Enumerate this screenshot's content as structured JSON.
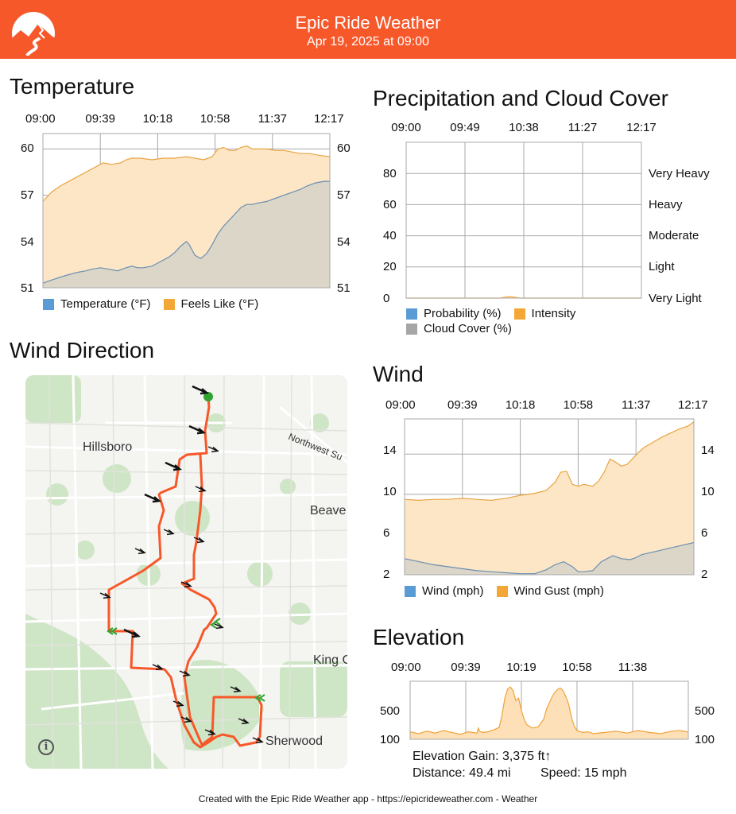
{
  "header": {
    "title": "Epic Ride Weather",
    "subtitle": "Apr 19, 2025 at 09:00",
    "brand_color": "#f7582a"
  },
  "temperature": {
    "title": "Temperature",
    "chart_data": {
      "type": "area",
      "x_ticks": [
        "09:00",
        "09:39",
        "10:18",
        "10:58",
        "11:37",
        "12:17"
      ],
      "y_ticks": [
        "60",
        "57",
        "54",
        "51"
      ],
      "ylim": [
        51,
        61
      ],
      "series": [
        {
          "name": "Temperature (°F)",
          "color": "#5a9bd5",
          "x": [
            0,
            3,
            8,
            12,
            15,
            17,
            20,
            23,
            26,
            29,
            31,
            33,
            35,
            38,
            40,
            42,
            44,
            46,
            48,
            50,
            51,
            53,
            55,
            57,
            59,
            61,
            63,
            65,
            67,
            69,
            71,
            73,
            75,
            78,
            81,
            84,
            87,
            90,
            92,
            95,
            98,
            100
          ],
          "values": [
            51.3,
            51.5,
            51.8,
            52.0,
            52.1,
            52.2,
            52.3,
            52.2,
            52.1,
            52.3,
            52.4,
            52.3,
            52.3,
            52.4,
            52.6,
            52.8,
            53.0,
            53.3,
            53.7,
            54.0,
            53.8,
            53.1,
            52.9,
            53.2,
            53.8,
            54.5,
            55.0,
            55.4,
            55.8,
            56.2,
            56.4,
            56.4,
            56.5,
            56.6,
            56.8,
            57.0,
            57.2,
            57.4,
            57.6,
            57.8,
            57.9,
            57.9
          ]
        },
        {
          "name": "Feels Like (°F)",
          "color": "#f4a636",
          "x": [
            0,
            3,
            6,
            10,
            14,
            18,
            21,
            24,
            27,
            29,
            31,
            34,
            38,
            42,
            46,
            50,
            53,
            56,
            59,
            61,
            63,
            65,
            67,
            69,
            71,
            73,
            75,
            78,
            81,
            84,
            87,
            90,
            93,
            96,
            100
          ],
          "values": [
            56.6,
            57.2,
            57.6,
            58.0,
            58.4,
            58.8,
            59.1,
            59.0,
            59.1,
            59.3,
            59.4,
            59.4,
            59.3,
            59.4,
            59.4,
            59.5,
            59.4,
            59.3,
            59.5,
            60.0,
            60.1,
            59.9,
            59.9,
            60.1,
            60.2,
            60.0,
            60.0,
            60.0,
            59.9,
            59.9,
            59.8,
            59.7,
            59.7,
            59.6,
            59.5
          ]
        }
      ]
    }
  },
  "precipitation": {
    "title": "Precipitation and Cloud Cover",
    "chart_data": {
      "type": "area",
      "x_ticks": [
        "09:00",
        "09:49",
        "10:38",
        "11:27",
        "12:17"
      ],
      "y_ticks": [
        "80",
        "60",
        "40",
        "20",
        "0"
      ],
      "right_ticks": [
        "Very Heavy",
        "Heavy",
        "Moderate",
        "Light",
        "Very Light"
      ],
      "ylim": [
        0,
        100
      ],
      "series": [
        {
          "name": "Probability (%)",
          "color": "#5a9bd5",
          "x": [],
          "values": []
        },
        {
          "name": "Intensity",
          "color": "#f4a636",
          "x": [
            0,
            40,
            42,
            44,
            46,
            48,
            100
          ],
          "values": [
            0,
            0,
            0.6,
            0.9,
            0.6,
            0,
            0
          ]
        },
        {
          "name": "Cloud Cover (%)",
          "color": "#a6a6a6",
          "x": [],
          "values": []
        }
      ]
    }
  },
  "wind_direction": {
    "title": "Wind Direction",
    "labels": {
      "hillsboro": "Hillsboro",
      "northwest": "Northwest Su",
      "beaverton": "Beave",
      "king": "King C",
      "sherwood": "Sherwood"
    },
    "info_icon": "i"
  },
  "wind": {
    "title": "Wind",
    "chart_data": {
      "type": "area",
      "x_ticks": [
        "09:00",
        "09:39",
        "10:18",
        "10:58",
        "11:37",
        "12:17"
      ],
      "y_ticks": [
        "14",
        "10",
        "6",
        "2"
      ],
      "ylim": [
        2,
        17.5
      ],
      "series": [
        {
          "name": "Wind (mph)",
          "color": "#5a9bd5",
          "x": [
            0,
            5,
            10,
            15,
            20,
            25,
            30,
            35,
            40,
            45,
            49,
            52,
            55,
            58,
            60,
            62,
            65,
            68,
            72,
            75,
            78,
            80,
            82,
            85,
            88,
            91,
            94,
            97,
            100
          ],
          "values": [
            3.6,
            3.3,
            3.0,
            2.8,
            2.6,
            2.4,
            2.3,
            2.2,
            2.1,
            2.1,
            2.5,
            3.0,
            3.3,
            2.8,
            2.3,
            2.3,
            2.4,
            3.3,
            3.9,
            3.6,
            3.5,
            3.7,
            4.0,
            4.2,
            4.4,
            4.6,
            4.8,
            5.0,
            5.2
          ]
        },
        {
          "name": "Wind Gust (mph)",
          "color": "#f4a636",
          "x": [
            0,
            5,
            10,
            15,
            20,
            25,
            30,
            35,
            40,
            45,
            49,
            52,
            54,
            56,
            58,
            60,
            62,
            65,
            67,
            69,
            71,
            73,
            75,
            77,
            79,
            81,
            83,
            86,
            89,
            92,
            95,
            98,
            100
          ],
          "values": [
            9.5,
            9.4,
            9.5,
            9.5,
            9.6,
            9.5,
            9.4,
            9.6,
            9.9,
            10.1,
            10.4,
            11.2,
            12.2,
            12.3,
            11.0,
            10.8,
            11.0,
            10.8,
            11.3,
            12.2,
            13.5,
            13.2,
            12.8,
            13.0,
            13.6,
            14.2,
            14.7,
            15.2,
            15.7,
            16.1,
            16.5,
            16.8,
            17.2
          ]
        }
      ]
    }
  },
  "elevation": {
    "title": "Elevation",
    "chart_data": {
      "type": "area",
      "x_ticks": [
        "09:00",
        "09:39",
        "10:19",
        "10:58",
        "11:38"
      ],
      "y_ticks": [
        "500",
        "100"
      ],
      "ylim": [
        100,
        1030
      ],
      "series": [
        {
          "name": "Elevation",
          "color": "#f4a636",
          "x": [
            0,
            3,
            6,
            9,
            12,
            15,
            18,
            21,
            24,
            24.5,
            25,
            26,
            28,
            30,
            32,
            33,
            34,
            35,
            36,
            37,
            38,
            39,
            40,
            41,
            42,
            44,
            46,
            48,
            49,
            50,
            51,
            52,
            53,
            54,
            55,
            56,
            57,
            58,
            59,
            60,
            62,
            64,
            66,
            70,
            74,
            78,
            82,
            86,
            90,
            94,
            97,
            100
          ],
          "values": [
            220,
            190,
            230,
            200,
            240,
            210,
            180,
            220,
            200,
            280,
            230,
            210,
            220,
            250,
            290,
            480,
            750,
            900,
            940,
            880,
            720,
            760,
            560,
            420,
            330,
            280,
            300,
            420,
            580,
            680,
            780,
            850,
            900,
            920,
            880,
            780,
            660,
            450,
            310,
            240,
            210,
            220,
            190,
            210,
            230,
            200,
            240,
            210,
            190,
            230,
            240,
            215
          ]
        }
      ]
    },
    "stats": {
      "gain": "Elevation Gain: 3,375 ft↑",
      "distance": "Distance: 49.4 mi",
      "speed": "Speed: 15 mph"
    }
  },
  "footer": {
    "text": "Created with the Epic Ride Weather app - https://epicrideweather.com - ",
    "apple_glyph": "",
    "weather": "Weather"
  }
}
